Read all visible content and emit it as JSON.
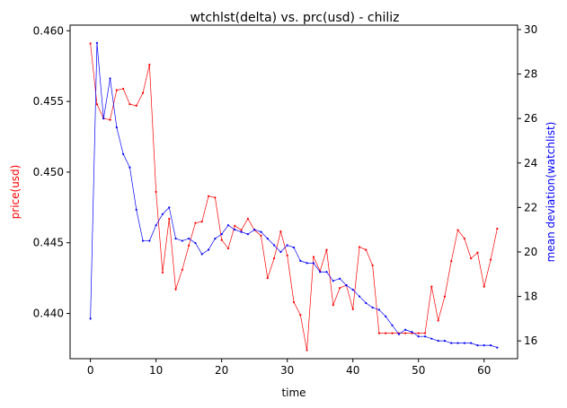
{
  "chart_data": {
    "type": "line",
    "title": "wtchlst(delta) vs. prc(usd) - chiliz",
    "xlabel": "time",
    "ylabel_left": "price(usd)",
    "ylabel_right": "mean deviation(watchlist)",
    "xlim": [
      -3.1,
      65.1
    ],
    "ylim_left": [
      0.4368,
      0.4604
    ],
    "ylim_right": [
      15.2,
      30.2
    ],
    "x_ticks": [
      0,
      10,
      20,
      30,
      40,
      50,
      60
    ],
    "y_ticks_left": [
      0.44,
      0.445,
      0.45,
      0.455,
      0.46
    ],
    "y_tick_labels_left": [
      "0.440",
      "0.445",
      "0.450",
      "0.455",
      "0.460"
    ],
    "y_ticks_right": [
      16,
      18,
      20,
      22,
      24,
      26,
      28,
      30
    ],
    "grid": false,
    "series": [
      {
        "axis": "left",
        "color": "#ff0000",
        "x": [
          0,
          1,
          2,
          3,
          4,
          5,
          6,
          7,
          8,
          9,
          10,
          11,
          12,
          13,
          14,
          15,
          16,
          17,
          18,
          19,
          20,
          21,
          22,
          23,
          24,
          25,
          26,
          27,
          28,
          29,
          30,
          31,
          32,
          33,
          34,
          35,
          36,
          37,
          38,
          39,
          40,
          41,
          42,
          43,
          44,
          45,
          46,
          47,
          48,
          49,
          50,
          51,
          52,
          53,
          54,
          55,
          56,
          57,
          58,
          59,
          60,
          61,
          62
        ],
        "values": [
          0.4591,
          0.4548,
          0.4538,
          0.4537,
          0.4558,
          0.4559,
          0.4548,
          0.4547,
          0.4556,
          0.4576,
          0.4486,
          0.4429,
          0.4467,
          0.4417,
          0.4431,
          0.4448,
          0.4464,
          0.4465,
          0.4483,
          0.4482,
          0.4452,
          0.4446,
          0.4462,
          0.4459,
          0.4467,
          0.4459,
          0.4455,
          0.4425,
          0.4439,
          0.4458,
          0.4441,
          0.4408,
          0.4399,
          0.4374,
          0.444,
          0.443,
          0.4445,
          0.4406,
          0.4418,
          0.442,
          0.4403,
          0.4447,
          0.4445,
          0.4434,
          0.4386,
          0.4386,
          0.4386,
          0.4386,
          0.4386,
          0.4386,
          0.4386,
          0.4386,
          0.4419,
          0.4395,
          0.4412,
          0.4437,
          0.4459,
          0.4453,
          0.4439,
          0.4443,
          0.4419,
          0.4438,
          0.446
        ]
      },
      {
        "axis": "right",
        "color": "#0000ff",
        "x": [
          0,
          1,
          2,
          3,
          4,
          5,
          6,
          7,
          8,
          9,
          10,
          11,
          12,
          13,
          14,
          15,
          16,
          17,
          18,
          19,
          20,
          21,
          22,
          23,
          24,
          25,
          26,
          27,
          28,
          29,
          30,
          31,
          32,
          33,
          34,
          35,
          36,
          37,
          38,
          39,
          40,
          41,
          42,
          43,
          44,
          45,
          46,
          47,
          48,
          49,
          50,
          51,
          52,
          53,
          54,
          55,
          56,
          57,
          58,
          59,
          60,
          61,
          62
        ],
        "values": [
          17.0,
          29.4,
          26.0,
          27.8,
          25.6,
          24.4,
          23.8,
          21.9,
          20.5,
          20.5,
          21.2,
          21.7,
          22.0,
          20.6,
          20.5,
          20.6,
          20.4,
          19.9,
          20.1,
          20.6,
          20.8,
          21.2,
          21.0,
          20.9,
          20.8,
          21.0,
          20.9,
          20.6,
          20.3,
          20.0,
          20.3,
          20.2,
          19.6,
          19.5,
          19.5,
          19.1,
          19.1,
          18.7,
          18.8,
          18.5,
          18.3,
          18.0,
          17.7,
          17.5,
          17.4,
          17.1,
          16.7,
          16.3,
          16.5,
          16.4,
          16.2,
          16.2,
          16.1,
          16.0,
          16.0,
          15.9,
          15.9,
          15.9,
          15.9,
          15.8,
          15.8,
          15.8,
          15.7
        ]
      }
    ]
  }
}
